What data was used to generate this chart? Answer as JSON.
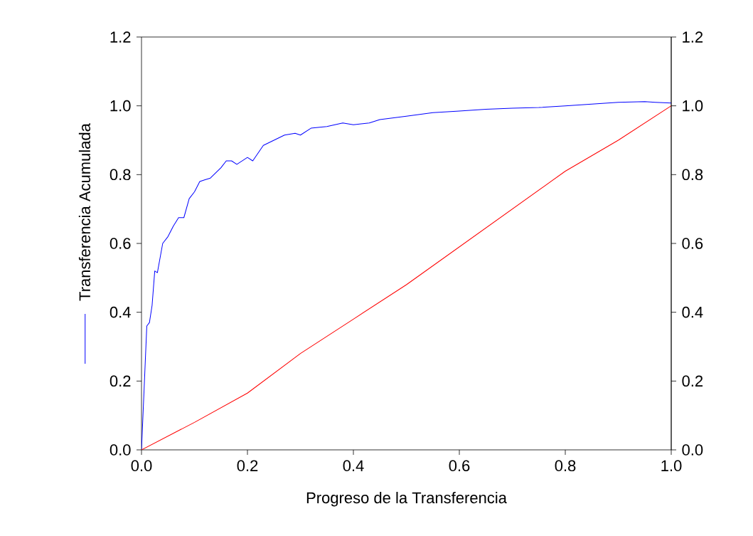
{
  "chart_data": {
    "type": "line",
    "xlabel": "Progreso de la Transferencia",
    "ylabel": "Transferencia Acumulada",
    "xlim": [
      0,
      1
    ],
    "ylim": [
      0,
      1.2
    ],
    "y2lim": [
      0,
      1.2
    ],
    "xticks": [
      {
        "value": 0,
        "label": "0.0"
      },
      {
        "value": 0.2,
        "label": "0.2"
      },
      {
        "value": 0.4,
        "label": "0.4"
      },
      {
        "value": 0.6,
        "label": "0.6"
      },
      {
        "value": 0.8,
        "label": "0.8"
      },
      {
        "value": 1,
        "label": "1.0"
      }
    ],
    "yticks": [
      {
        "value": 0,
        "label": "0.0"
      },
      {
        "value": 0.2,
        "label": "0.2"
      },
      {
        "value": 0.4,
        "label": "0.4"
      },
      {
        "value": 0.6,
        "label": "0.6"
      },
      {
        "value": 0.8,
        "label": "0.8"
      },
      {
        "value": 1,
        "label": "1.0"
      },
      {
        "value": 1.2,
        "label": "1.2"
      }
    ],
    "y2ticks": [
      {
        "value": 0,
        "label": "0.0"
      },
      {
        "value": 0.2,
        "label": "0.2"
      },
      {
        "value": 0.4,
        "label": "0.4"
      },
      {
        "value": 0.6,
        "label": "0.6"
      },
      {
        "value": 0.8,
        "label": "0.8"
      },
      {
        "value": 1,
        "label": "1.0"
      },
      {
        "value": 1.2,
        "label": "1.2"
      }
    ],
    "grid": false,
    "marker": "none",
    "line_style": "solid",
    "series": [
      {
        "color": "#0000ff",
        "x": [
          0,
          0.01,
          0.015,
          0.02,
          0.025,
          0.03,
          0.04,
          0.05,
          0.06,
          0.07,
          0.08,
          0.09,
          0.1,
          0.11,
          0.12,
          0.13,
          0.15,
          0.16,
          0.17,
          0.18,
          0.2,
          0.21,
          0.23,
          0.25,
          0.27,
          0.29,
          0.3,
          0.32,
          0.35,
          0.38,
          0.4,
          0.43,
          0.45,
          0.5,
          0.55,
          0.6,
          0.65,
          0.7,
          0.75,
          0.8,
          0.85,
          0.9,
          0.95,
          0.97,
          1.0
        ],
        "values": [
          0,
          0.36,
          0.37,
          0.42,
          0.52,
          0.515,
          0.6,
          0.62,
          0.65,
          0.675,
          0.675,
          0.73,
          0.75,
          0.78,
          0.785,
          0.79,
          0.82,
          0.84,
          0.84,
          0.83,
          0.85,
          0.84,
          0.885,
          0.9,
          0.915,
          0.92,
          0.915,
          0.935,
          0.94,
          0.95,
          0.945,
          0.95,
          0.96,
          0.97,
          0.98,
          0.985,
          0.99,
          0.993,
          0.995,
          1.0,
          1.005,
          1.01,
          1.012,
          1.01,
          1.008
        ]
      },
      {
        "color": "#ff0000",
        "x": [
          0,
          0.1,
          0.2,
          0.3,
          0.4,
          0.5,
          0.6,
          0.7,
          0.8,
          0.9,
          1.0
        ],
        "values": [
          0,
          0.08,
          0.165,
          0.28,
          0.38,
          0.48,
          0.59,
          0.7,
          0.81,
          0.9,
          1.0
        ]
      }
    ]
  }
}
